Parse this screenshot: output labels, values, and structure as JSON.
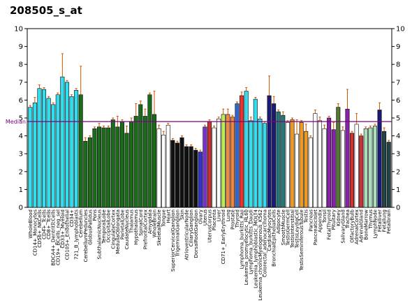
{
  "chart_data": {
    "type": "bar",
    "title": "208505_s_at",
    "ylim": [
      0,
      10
    ],
    "yticks": [
      0,
      1,
      2,
      3,
      4,
      5,
      6,
      7,
      8,
      9,
      10
    ],
    "median": 4.8,
    "median_label": "Median",
    "median_color": "#800080",
    "error_color": "#cc5500",
    "categories": [
      {
        "label": "WholeBlood",
        "value": 5.6,
        "err": 0.1,
        "color": "#33ddee"
      },
      {
        "label": "CD14+_Monocytes",
        "value": 5.85,
        "err": 0.3,
        "color": "#33ddee"
      },
      {
        "label": "CD56+_NKCells",
        "value": 6.65,
        "err": 0.2,
        "color": "#33ddee"
      },
      {
        "label": "CD4+_Tcells",
        "value": 6.6,
        "err": 0.1,
        "color": "#33ddee"
      },
      {
        "label": "CD8+_Tcells",
        "value": 6.1,
        "err": 0.1,
        "color": "#33ddee"
      },
      {
        "label": "BDCA4+_DentriticCells",
        "value": 5.75,
        "err": 0.1,
        "color": "#33ddee"
      },
      {
        "label": "CD19+_BCells_neg_sel",
        "value": 6.3,
        "err": 0.1,
        "color": "#33ddee"
      },
      {
        "label": "CD33+_Myeloid",
        "value": 7.3,
        "err": 1.3,
        "color": "#33ddee"
      },
      {
        "label": "CD105+_Endothelial",
        "value": 7.0,
        "err": 0.1,
        "color": "#33ddee"
      },
      {
        "label": "CD34+",
        "value": 6.2,
        "err": 0.1,
        "color": "#33ddee"
      },
      {
        "label": "721_B_lymphoblasts",
        "value": 6.55,
        "err": 0.1,
        "color": "#33ddee"
      },
      {
        "label": "Cerebellum",
        "value": 6.3,
        "err": 1.6,
        "color": "#1a6b1a"
      },
      {
        "label": "CerebellumPeduncles",
        "value": 3.7,
        "err": 0.2,
        "color": "#1a6b1a"
      },
      {
        "label": "GlobusPallidus",
        "value": 3.9,
        "err": 0.1,
        "color": "#1a6b1a"
      },
      {
        "label": "Pons",
        "value": 4.4,
        "err": 0.1,
        "color": "#1a6b1a"
      },
      {
        "label": "SubthalamicNucleus",
        "value": 4.5,
        "err": 0.2,
        "color": "#1a6b1a"
      },
      {
        "label": "TemporalLobe",
        "value": 4.45,
        "err": 0.1,
        "color": "#1a6b1a"
      },
      {
        "label": "OccipitalLobe",
        "value": 4.45,
        "err": 0.1,
        "color": "#1a6b1a"
      },
      {
        "label": "CingulateCortex",
        "value": 4.9,
        "err": 0.1,
        "color": "#1a6b1a"
      },
      {
        "label": "MedullaOblongata",
        "value": 4.5,
        "err": 0.6,
        "color": "#1a6b1a"
      },
      {
        "label": "ParietalLobe",
        "value": 4.8,
        "err": 0.1,
        "color": "#1a6b1a"
      },
      {
        "label": "CaudateNucleus",
        "value": 4.15,
        "err": 0.4,
        "color": "#1a6b1a"
      },
      {
        "label": "Thalamus",
        "value": 4.8,
        "err": 0.2,
        "color": "#1a6b1a"
      },
      {
        "label": "Hypothalamus",
        "value": 5.1,
        "err": 0.7,
        "color": "#1a6b1a"
      },
      {
        "label": "SpinalCord",
        "value": 5.75,
        "err": 0.2,
        "color": "#1a6b1a"
      },
      {
        "label": "PrefrontalCortex",
        "value": 5.1,
        "err": 0.4,
        "color": "#1a6b1a"
      },
      {
        "label": "Amygdala",
        "value": 6.3,
        "err": 0.1,
        "color": "#1a6b1a"
      },
      {
        "label": "WholeBrain",
        "value": 5.2,
        "err": 1.3,
        "color": "#1a6b1a"
      },
      {
        "label": "SkeletalMuscle",
        "value": 4.4,
        "err": 0.2,
        "color": "#ffffff"
      },
      {
        "label": "Tongue",
        "value": 4.05,
        "err": 0.2,
        "color": "#ffffff"
      },
      {
        "label": "Heart",
        "value": 4.6,
        "err": 0.1,
        "color": "#ffffff"
      },
      {
        "label": "SuperiorCervicalGanglion",
        "value": 3.75,
        "err": 0.1,
        "color": "#111111"
      },
      {
        "label": "TrigeminalGanglion",
        "value": 3.6,
        "err": 0.1,
        "color": "#111111"
      },
      {
        "label": "Skin",
        "value": 3.9,
        "err": 0.1,
        "color": "#111111"
      },
      {
        "label": "AtrioventricularNode",
        "value": 3.4,
        "err": 0.1,
        "color": "#111111"
      },
      {
        "label": "CiliaryGanglion",
        "value": 3.4,
        "err": 0.1,
        "color": "#111111"
      },
      {
        "label": "DorsalRootGanglion",
        "value": 3.2,
        "err": 0.1,
        "color": "#111111"
      },
      {
        "label": "Ovary",
        "value": 3.1,
        "err": 0.1,
        "color": "#3333cc"
      },
      {
        "label": "Uterus",
        "value": 4.5,
        "err": 0.1,
        "color": "#7733cc"
      },
      {
        "label": "UterusCorpus",
        "value": 4.8,
        "err": 0.1,
        "color": "#cc3333"
      },
      {
        "label": "Placenta",
        "value": 4.45,
        "err": 0.1,
        "color": "#ffffff"
      },
      {
        "label": "Liver",
        "value": 4.95,
        "err": 0.1,
        "color": "#ffffff"
      },
      {
        "label": "CD71+_EarlyErythroid",
        "value": 5.2,
        "err": 0.3,
        "color": "#bbee55"
      },
      {
        "label": "Lung",
        "value": 5.2,
        "err": 0.3,
        "color": "#ee8844"
      },
      {
        "label": "Prostate",
        "value": 5.05,
        "err": 0.1,
        "color": "#ee8844"
      },
      {
        "label": "Thyroid",
        "value": 5.8,
        "err": 0.1,
        "color": "#3366cc"
      },
      {
        "label": "Lymphoma_burkitts_Raji",
        "value": 6.25,
        "err": 0.2,
        "color": "#ee3333"
      },
      {
        "label": "Leukemia_promyelocytic_HL60",
        "value": 6.5,
        "err": 0.2,
        "color": "#33ddee"
      },
      {
        "label": "Lymphoma_burkitts_Daudi",
        "value": 4.85,
        "err": 0.2,
        "color": "#33ddee"
      },
      {
        "label": "Leukemia_lymphoblastic_MOLT4",
        "value": 6.05,
        "err": 0.1,
        "color": "#33ddee"
      },
      {
        "label": "Leukemia_chronicMyelogenous_K562",
        "value": 4.95,
        "err": 0.1,
        "color": "#33ddee"
      },
      {
        "label": "Colorectal_adenocarcinoma",
        "value": 4.7,
        "err": 0.1,
        "color": "#33ddee"
      },
      {
        "label": "CardiacMyocytes",
        "value": 6.25,
        "err": 1.1,
        "color": "#1a1a77"
      },
      {
        "label": "BronchialEpithelialCells",
        "value": 5.8,
        "err": 0.4,
        "color": "#1a1a77"
      },
      {
        "label": "Adipocyte",
        "value": 5.35,
        "err": 0.1,
        "color": "#227777"
      },
      {
        "label": "SmoothMuscle",
        "value": 5.15,
        "err": 0.2,
        "color": "#227777"
      },
      {
        "label": "TestisGermCell",
        "value": 4.75,
        "err": 0.1,
        "color": "#ffffff"
      },
      {
        "label": "TestisInterstitial",
        "value": 4.9,
        "err": 0.1,
        "color": "#ee9922"
      },
      {
        "label": "TestisLeydigCell",
        "value": 4.1,
        "err": 0.8,
        "color": "#ffffff"
      },
      {
        "label": "TestisSeminiferousTubule",
        "value": 4.75,
        "err": 0.1,
        "color": "#ee9922"
      },
      {
        "label": "Testis",
        "value": 4.25,
        "err": 0.4,
        "color": "#ee9922"
      },
      {
        "label": "Pancreas",
        "value": 3.9,
        "err": 0.1,
        "color": "#ffffff"
      },
      {
        "label": "PancreaticIslet",
        "value": 5.25,
        "err": 0.2,
        "color": "#ffffff"
      },
      {
        "label": "Appendix",
        "value": 4.85,
        "err": 0.2,
        "color": "#ffffff"
      },
      {
        "label": "Tonsil",
        "value": 4.4,
        "err": 0.2,
        "color": "#ffffff"
      },
      {
        "label": "FetalThyroid",
        "value": 5.0,
        "err": 0.1,
        "color": "#8822aa"
      },
      {
        "label": "Pituitary",
        "value": 4.35,
        "err": 0.4,
        "color": "#8822aa"
      },
      {
        "label": "Kidney",
        "value": 5.6,
        "err": 0.2,
        "color": "#557733"
      },
      {
        "label": "SalivaryGland",
        "value": 4.3,
        "err": 0.2,
        "color": "#ffffff"
      },
      {
        "label": "Trachea",
        "value": 5.5,
        "err": 1.1,
        "color": "#8822aa"
      },
      {
        "label": "OlfactoryBulb",
        "value": 4.15,
        "err": 0.1,
        "color": "#cc3333"
      },
      {
        "label": "AdrenalCortex",
        "value": 4.65,
        "err": 0.6,
        "color": "#ffffff"
      },
      {
        "label": "AdrenalGland",
        "value": 4.0,
        "err": 0.1,
        "color": "#cc3333"
      },
      {
        "label": "BoneMarrow",
        "value": 4.4,
        "err": 0.1,
        "color": "#aaddbb"
      },
      {
        "label": "Thymus",
        "value": 4.45,
        "err": 0.1,
        "color": "#aaddbb"
      },
      {
        "label": "LymphNode",
        "value": 4.55,
        "err": 0.1,
        "color": "#aaddbb"
      },
      {
        "label": "Fetalliver",
        "value": 5.45,
        "err": 0.4,
        "color": "#1a1a77"
      },
      {
        "label": "Fetallung",
        "value": 4.25,
        "err": 0.2,
        "color": "#224444"
      },
      {
        "label": "Fetalbrain",
        "value": 3.65,
        "err": 0.1,
        "color": "#224444"
      }
    ],
    "xlabels": [
      "WholeBlood",
      "CD14+_Monocytes",
      "CD56+_NKCells",
      "CD4+_Tcells",
      "CD8+_Tcells",
      "BDCA4+_DentriticCells",
      "CD19+_BCells_neg_sel",
      "CD33+_Myeloid",
      "CD105+_Endothelial",
      "CD34+",
      "721_B_lymphoblasts",
      "Cerebellum",
      "CerebellumPeduncles",
      "GlobusPallidus",
      "Pons",
      "SubthalamicNucleus",
      "TemporalLobe",
      "OccipitalLobe",
      "CingulateCortex",
      "MedullaOblongata",
      "ParietalLobe",
      "CaudateNucleus",
      "Thalamus",
      "Hypothalamus",
      "SpinalCord",
      "PrefrontalCortex",
      "Amygdala",
      "WholeBrain",
      "SkeletalMuscle",
      "Tongue",
      "Heart",
      "SuperiorCervicalGanglion",
      "TrigeminalGanglion",
      "Skin",
      "AtrioventricularNode",
      "CiliaryGanglion",
      "DorsalRootGanglion",
      "Ovary",
      "Uterus",
      "UterusCorpus",
      "Placenta",
      "Liver",
      "CD71+_EarlyErythroid",
      "Lung",
      "Prostate",
      "Thyroid",
      "Lymphoma_burkitts_Raji",
      "Leukemia_promyelocytic_HL60",
      "Lymphoma_burkitts_Daudi",
      "Leukemia_lymphoblastic_MOLT4",
      "Leukemia_chronicMyelogenous_K562",
      "Colorectal_adenocarcinoma",
      "CardiacMyocytes",
      "BronchialEpithelialCells",
      "Adipocyte",
      "SmoothMuscle",
      "TestisGermCell",
      "TestisInterstitial",
      "TestisLeydigCell",
      "TestisSeminiferousTubule",
      "Testis",
      "Pancreas",
      "PancreaticIslet",
      "Appendix",
      "Tonsil",
      "FetalThyroid",
      "Pituitary",
      "Kidney",
      "SalivaryGland",
      "Trachea",
      "OlfactoryBulb",
      "AdrenalCortex",
      "AdrenalGland",
      "BoneMarrow",
      "Thymus",
      "LymphNode",
      "Fetalliver",
      "Fetallung",
      "Fetalbrain"
    ]
  }
}
